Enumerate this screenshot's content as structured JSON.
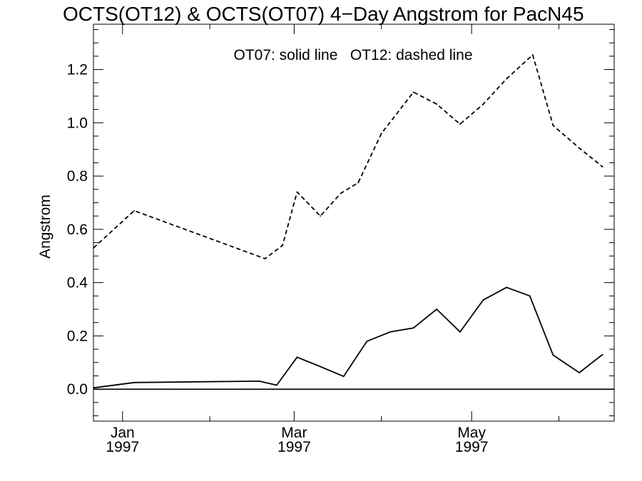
{
  "chart_data": {
    "type": "line",
    "title": "OCTS(OT12) & OCTS(OT07) 4−Day Angstrom for PacN45",
    "annotation": "OT07: solid line   OT12: dashed line",
    "xlabel": "",
    "ylabel": "Angstrom",
    "ylim": [
      -0.12,
      1.37
    ],
    "y_ticks": [
      {
        "value": 0.0,
        "label": "0.0"
      },
      {
        "value": 0.2,
        "label": "0.2"
      },
      {
        "value": 0.4,
        "label": "0.4"
      },
      {
        "value": 0.6,
        "label": "0.6"
      },
      {
        "value": 0.8,
        "label": "0.8"
      },
      {
        "value": 1.0,
        "label": "1.0"
      },
      {
        "value": 1.2,
        "label": "1.2"
      }
    ],
    "xlim": [
      "1996-12-22",
      "1997-06-19"
    ],
    "x_ticks": [
      {
        "date": "1997-01-01",
        "label": "Jan",
        "sublabel": "1997"
      },
      {
        "date": "1997-03-01",
        "label": "Mar",
        "sublabel": "1997"
      },
      {
        "date": "1997-05-01",
        "label": "May",
        "sublabel": "1997"
      }
    ],
    "x_minor_ticks": [
      "1997-01-31",
      "1997-03-31",
      "1997-05-31"
    ],
    "reference_line": {
      "y": 0.0
    },
    "grid": false,
    "series": [
      {
        "style": "solid",
        "color": "#000000",
        "points": [
          {
            "x": "1996-12-22",
            "y": 0.005
          },
          {
            "x": "1997-01-05",
            "y": 0.025
          },
          {
            "x": "1997-02-17",
            "y": 0.03
          },
          {
            "x": "1997-02-23",
            "y": 0.015
          },
          {
            "x": "1997-03-02",
            "y": 0.12
          },
          {
            "x": "1997-03-10",
            "y": 0.085
          },
          {
            "x": "1997-03-18",
            "y": 0.048
          },
          {
            "x": "1997-03-26",
            "y": 0.18
          },
          {
            "x": "1997-04-03",
            "y": 0.215
          },
          {
            "x": "1997-04-11",
            "y": 0.23
          },
          {
            "x": "1997-04-19",
            "y": 0.3
          },
          {
            "x": "1997-04-27",
            "y": 0.215
          },
          {
            "x": "1997-05-05",
            "y": 0.335
          },
          {
            "x": "1997-05-13",
            "y": 0.382
          },
          {
            "x": "1997-05-21",
            "y": 0.35
          },
          {
            "x": "1997-05-29",
            "y": 0.128
          },
          {
            "x": "1997-06-07",
            "y": 0.062
          },
          {
            "x": "1997-06-15",
            "y": 0.13
          }
        ]
      },
      {
        "style": "dashed",
        "color": "#000000",
        "points": [
          {
            "x": "1996-12-22",
            "y": 0.53
          },
          {
            "x": "1997-01-05",
            "y": 0.67
          },
          {
            "x": "1997-02-19",
            "y": 0.49
          },
          {
            "x": "1997-02-25",
            "y": 0.54
          },
          {
            "x": "1997-03-02",
            "y": 0.74
          },
          {
            "x": "1997-03-10",
            "y": 0.65
          },
          {
            "x": "1997-03-17",
            "y": 0.735
          },
          {
            "x": "1997-03-23",
            "y": 0.775
          },
          {
            "x": "1997-03-31",
            "y": 0.96
          },
          {
            "x": "1997-04-11",
            "y": 1.115
          },
          {
            "x": "1997-04-19",
            "y": 1.07
          },
          {
            "x": "1997-04-27",
            "y": 0.995
          },
          {
            "x": "1997-05-05",
            "y": 1.07
          },
          {
            "x": "1997-05-13",
            "y": 1.165
          },
          {
            "x": "1997-05-22",
            "y": 1.255
          },
          {
            "x": "1997-05-29",
            "y": 0.99
          },
          {
            "x": "1997-06-07",
            "y": 0.905
          },
          {
            "x": "1997-06-15",
            "y": 0.835
          }
        ]
      }
    ]
  }
}
